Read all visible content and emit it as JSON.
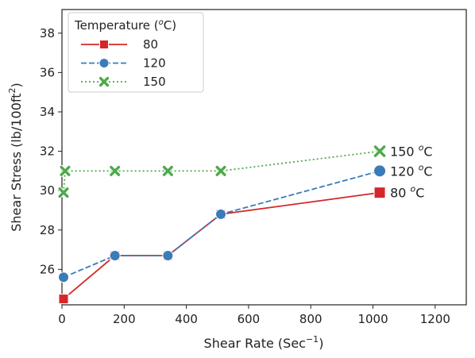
{
  "chart_data": {
    "type": "line",
    "xlabel": "Shear Rate (Sec",
    "xlabel_sup": "−1",
    "xlabel_end": ")",
    "ylabel": "Shear Stress (lb/100ft",
    "ylabel_sup": "2",
    "ylabel_end": ")",
    "xlim": [
      0,
      1300
    ],
    "ylim": [
      24.2,
      39.2
    ],
    "xticks": [
      0,
      200,
      400,
      600,
      800,
      1000,
      1200
    ],
    "yticks": [
      26,
      28,
      30,
      32,
      34,
      36,
      38
    ],
    "grid": false,
    "legend": {
      "title_pre": "Temperature (",
      "title_sup": "o",
      "title_post": "C)",
      "placement": "top-left"
    },
    "series": [
      {
        "name": "80",
        "color": "#d62728",
        "marker": "square",
        "linestyle": "solid",
        "x": [
          5.1,
          170.3,
          340.6,
          510.9,
          1021.8
        ],
        "y": [
          24.5,
          26.7,
          26.7,
          28.8,
          29.9
        ],
        "end_label_pre": "80 ",
        "end_label_sup": "o",
        "end_label_post": "C"
      },
      {
        "name": "120",
        "color": "#3a7bb8",
        "marker": "circle",
        "linestyle": "dashed",
        "x": [
          5.1,
          170.3,
          340.6,
          510.9,
          1021.8
        ],
        "y": [
          25.6,
          26.7,
          26.7,
          28.8,
          31.0
        ],
        "end_label_pre": "120 ",
        "end_label_sup": "o",
        "end_label_post": "C"
      },
      {
        "name": "150",
        "color": "#4daa4a",
        "marker": "x",
        "linestyle": "dotted",
        "x": [
          5.1,
          10.2,
          170.3,
          340.6,
          510.9,
          1021.8
        ],
        "y": [
          29.9,
          31.0,
          31.0,
          31.0,
          31.0,
          32.0
        ],
        "end_label_pre": "150 ",
        "end_label_sup": "o",
        "end_label_post": "C"
      }
    ]
  }
}
